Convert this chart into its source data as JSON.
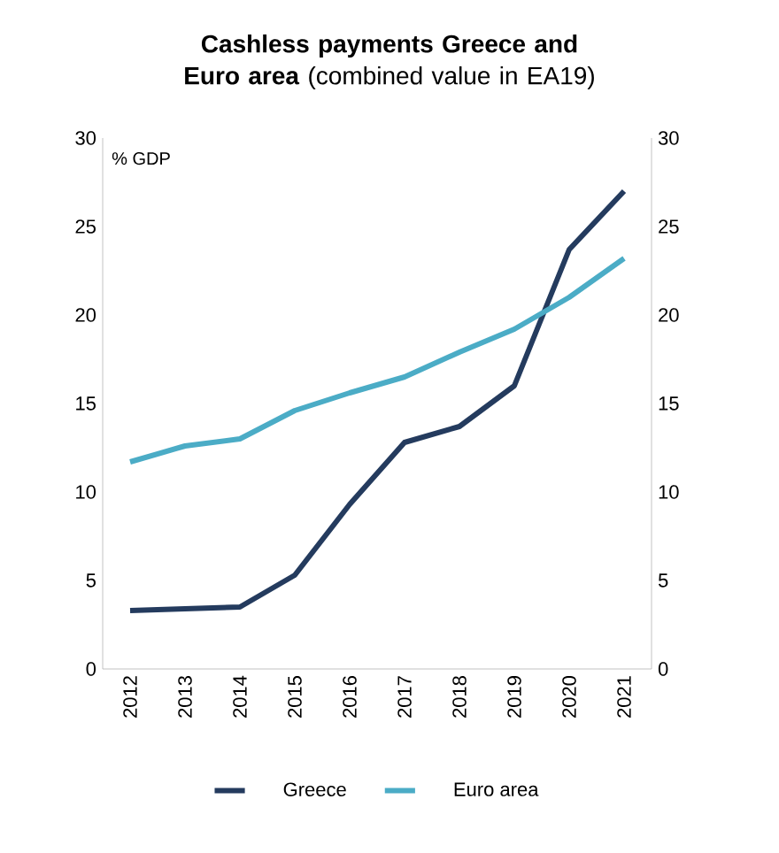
{
  "chart_data": {
    "type": "line",
    "title": "**Cashless payments Greece and Euro area** (combined value in  EA19)",
    "annotations": [
      "% GDP"
    ],
    "categories": [
      "2012",
      "2013",
      "2014",
      "2015",
      "2016",
      "2017",
      "2018",
      "2019",
      "2020",
      "2021"
    ],
    "series": [
      {
        "name": "Greece",
        "color": "#243b5e",
        "values": [
          3.3,
          3.4,
          3.5,
          5.3,
          9.3,
          12.8,
          13.7,
          16.0,
          23.7,
          27.0
        ]
      },
      {
        "name": "Euro area",
        "color": "#4bacc6",
        "values": [
          11.7,
          12.6,
          13.0,
          14.6,
          15.6,
          16.5,
          17.9,
          19.2,
          21.0,
          23.2
        ]
      }
    ],
    "ylim": [
      0,
      30
    ],
    "yticks": [
      0,
      5,
      10,
      15,
      20,
      25,
      30
    ],
    "y2lim": [
      0,
      30
    ],
    "y2ticks": [
      0,
      5,
      10,
      15,
      20,
      25,
      30
    ],
    "grid": false,
    "legend": "bottom",
    "marker": "none",
    "line_style": "solid"
  }
}
